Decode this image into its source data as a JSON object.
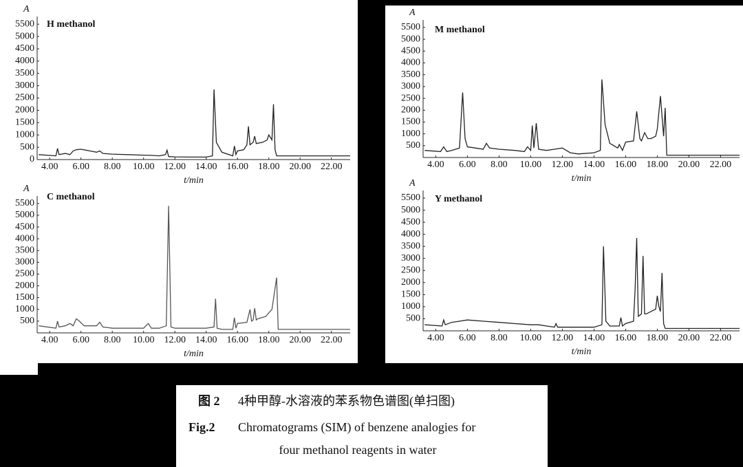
{
  "chart_data": [
    {
      "type": "line",
      "title": "H methanol",
      "ylabel": "A",
      "xlabel": "t/min",
      "xlim": [
        3.2,
        23.2
      ],
      "ylim": [
        0,
        5700
      ],
      "xticks": [
        {
          "value": 4,
          "label": "4.00"
        },
        {
          "value": 6,
          "label": "6.00"
        },
        {
          "value": 8,
          "label": "8.00"
        },
        {
          "value": 10,
          "label": "10.00"
        },
        {
          "value": 12,
          "label": "12.00"
        },
        {
          "value": 14,
          "label": "14.00"
        },
        {
          "value": 16,
          "label": "16.00"
        },
        {
          "value": 18,
          "label": "18.00"
        },
        {
          "value": 20,
          "label": "20.00"
        },
        {
          "value": 22,
          "label": "22.00"
        }
      ],
      "yticks": [
        0,
        500,
        1000,
        1500,
        2000,
        2500,
        3000,
        3500,
        4000,
        4500,
        5000,
        5500
      ],
      "x": [
        3.3,
        4.4,
        4.5,
        4.6,
        5.0,
        5.3,
        5.5,
        5.7,
        6.0,
        7.0,
        7.2,
        7.4,
        8.0,
        9.0,
        10.0,
        10.5,
        11.0,
        11.4,
        11.5,
        11.6,
        12.0,
        13.0,
        14.0,
        14.4,
        14.5,
        14.65,
        15.0,
        15.7,
        15.8,
        15.9,
        16.0,
        16.4,
        16.6,
        16.7,
        16.8,
        17.0,
        17.1,
        17.2,
        17.6,
        17.9,
        18.0,
        18.2,
        18.3,
        18.4,
        18.5,
        23.2
      ],
      "values": [
        200,
        150,
        450,
        200,
        250,
        200,
        350,
        400,
        420,
        300,
        350,
        250,
        220,
        200,
        180,
        170,
        150,
        200,
        380,
        120,
        110,
        100,
        100,
        150,
        2850,
        700,
        300,
        150,
        550,
        200,
        350,
        400,
        600,
        1350,
        600,
        700,
        950,
        650,
        700,
        800,
        1000,
        800,
        2250,
        400,
        150,
        150
      ],
      "color": "#222"
    },
    {
      "type": "line",
      "title": "C methanol",
      "ylabel": "A",
      "xlabel": "t/min",
      "xlim": [
        3.2,
        23.2
      ],
      "ylim": [
        0,
        5700
      ],
      "xticks": [
        {
          "value": 4,
          "label": "4.00"
        },
        {
          "value": 6,
          "label": "6.00"
        },
        {
          "value": 8,
          "label": "8.00"
        },
        {
          "value": 10,
          "label": "10.00"
        },
        {
          "value": 12,
          "label": "12.00"
        },
        {
          "value": 14,
          "label": "14.00"
        },
        {
          "value": 16,
          "label": "16.00"
        },
        {
          "value": 18,
          "label": "18.00"
        },
        {
          "value": 20,
          "label": "20.00"
        },
        {
          "value": 22,
          "label": "22.00"
        }
      ],
      "yticks": [
        500,
        1000,
        1500,
        2000,
        2500,
        3000,
        3500,
        4000,
        4500,
        5000,
        5500
      ],
      "x": [
        3.3,
        4.4,
        4.5,
        4.6,
        5.0,
        5.3,
        5.5,
        5.7,
        5.9,
        6.2,
        7.0,
        7.2,
        7.4,
        8.0,
        9.0,
        10.0,
        10.3,
        10.5,
        11.0,
        11.45,
        11.6,
        11.75,
        12.0,
        13.0,
        14.0,
        14.5,
        14.6,
        14.7,
        15.0,
        15.7,
        15.8,
        15.9,
        16.0,
        16.6,
        16.8,
        16.9,
        17.0,
        17.1,
        17.2,
        17.3,
        17.8,
        18.2,
        18.5,
        18.6,
        23.2
      ],
      "values": [
        300,
        200,
        500,
        250,
        300,
        400,
        300,
        600,
        500,
        300,
        300,
        450,
        250,
        200,
        200,
        200,
        400,
        200,
        200,
        300,
        5400,
        250,
        200,
        200,
        200,
        250,
        1450,
        200,
        150,
        150,
        650,
        200,
        400,
        450,
        1000,
        500,
        550,
        1050,
        550,
        600,
        700,
        1000,
        2350,
        150,
        150
      ],
      "color": "#555"
    },
    {
      "type": "line",
      "title": "M methanol",
      "ylabel": "A",
      "xlabel": "t/min",
      "xlim": [
        3.2,
        23.2
      ],
      "ylim": [
        0,
        5700
      ],
      "xticks": [
        {
          "value": 4,
          "label": "4.00"
        },
        {
          "value": 6,
          "label": "6.00"
        },
        {
          "value": 8,
          "label": "8.00"
        },
        {
          "value": 10,
          "label": "10.00"
        },
        {
          "value": 12,
          "label": "12.00"
        },
        {
          "value": 14,
          "label": "14.00"
        },
        {
          "value": 16,
          "label": "16.00"
        },
        {
          "value": 18,
          "label": "18.00"
        },
        {
          "value": 20,
          "label": "20.00"
        },
        {
          "value": 22,
          "label": "22.00"
        }
      ],
      "yticks": [
        500,
        1000,
        1500,
        2000,
        2500,
        3000,
        3500,
        4000,
        4500,
        5000,
        5500
      ],
      "x": [
        3.3,
        4.3,
        4.5,
        4.7,
        5.0,
        5.5,
        5.7,
        5.85,
        6.0,
        6.5,
        7.0,
        7.2,
        7.4,
        8.0,
        9.0,
        9.6,
        9.8,
        10.0,
        10.1,
        10.2,
        10.35,
        10.5,
        11.0,
        11.5,
        12.0,
        12.5,
        13.0,
        14.0,
        14.4,
        14.5,
        14.7,
        15.0,
        15.5,
        15.6,
        15.8,
        16.0,
        16.5,
        16.7,
        16.9,
        17.0,
        17.2,
        17.4,
        17.6,
        17.9,
        18.0,
        18.2,
        18.4,
        18.5,
        18.6,
        23.2
      ],
      "values": [
        300,
        250,
        450,
        250,
        300,
        400,
        2750,
        800,
        450,
        400,
        350,
        600,
        400,
        350,
        300,
        250,
        450,
        300,
        1350,
        400,
        1450,
        350,
        300,
        350,
        400,
        200,
        150,
        200,
        300,
        3300,
        1400,
        600,
        400,
        550,
        300,
        650,
        700,
        1950,
        800,
        700,
        1050,
        800,
        800,
        900,
        1200,
        2600,
        900,
        2100,
        100,
        100
      ],
      "color": "#222"
    },
    {
      "type": "line",
      "title": "Y methanol",
      "ylabel": "A",
      "xlabel": "t/min",
      "xlim": [
        3.2,
        23.2
      ],
      "ylim": [
        0,
        5700
      ],
      "xticks": [
        {
          "value": 4,
          "label": "4.00"
        },
        {
          "value": 6,
          "label": "6.00"
        },
        {
          "value": 8,
          "label": "8.00"
        },
        {
          "value": 10,
          "label": "10.00"
        },
        {
          "value": 12,
          "label": "12.00"
        },
        {
          "value": 14,
          "label": "14.00"
        },
        {
          "value": 16,
          "label": "16.00"
        },
        {
          "value": 18,
          "label": "18.00"
        },
        {
          "value": 20,
          "label": "20.00"
        },
        {
          "value": 22,
          "label": "22.00"
        }
      ],
      "yticks": [
        500,
        1000,
        1500,
        2000,
        2500,
        3000,
        3500,
        4000,
        4500,
        5000,
        5500
      ],
      "x": [
        3.3,
        4.4,
        4.5,
        4.6,
        5.0,
        5.5,
        6.0,
        7.0,
        8.0,
        9.0,
        10.0,
        10.5,
        11.0,
        11.5,
        11.6,
        11.7,
        12.0,
        13.0,
        14.0,
        14.5,
        14.6,
        14.75,
        15.0,
        15.6,
        15.7,
        15.8,
        16.0,
        16.5,
        16.6,
        16.7,
        16.8,
        17.0,
        17.1,
        17.2,
        17.3,
        17.6,
        17.9,
        18.0,
        18.1,
        18.2,
        18.3,
        18.4,
        18.5,
        23.2
      ],
      "values": [
        250,
        200,
        450,
        250,
        350,
        400,
        450,
        400,
        350,
        300,
        250,
        250,
        200,
        150,
        300,
        150,
        150,
        150,
        150,
        250,
        3500,
        400,
        200,
        200,
        550,
        200,
        300,
        400,
        1750,
        3850,
        600,
        700,
        3100,
        700,
        700,
        800,
        900,
        1450,
        1000,
        800,
        2400,
        300,
        100,
        100
      ],
      "color": "#222"
    }
  ],
  "caption": {
    "fig_zh": "图 2",
    "title_zh": "4种甲醇-水溶液的苯系物色谱图(单扫图)",
    "fig_en": "Fig.2",
    "title_en": [
      "Chromatograms (SIM) of benzene analogies for",
      "four methanol reagents in water"
    ]
  }
}
